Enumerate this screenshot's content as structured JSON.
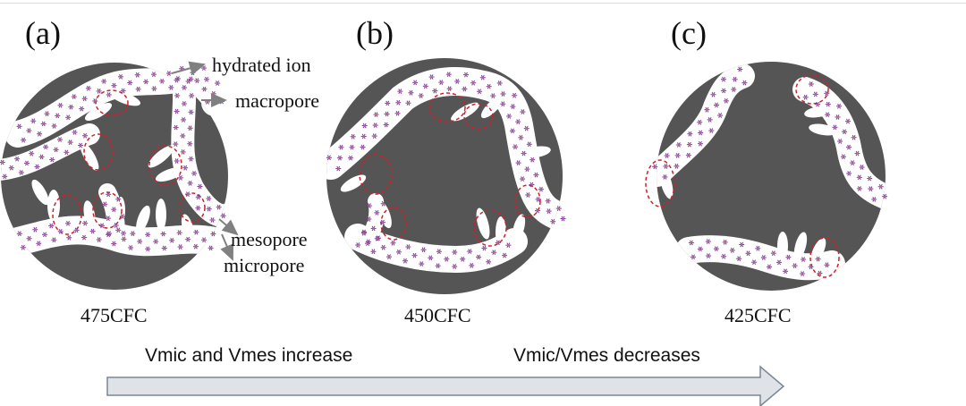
{
  "panels": [
    {
      "letter": "(a)",
      "sample": "475CFC"
    },
    {
      "letter": "(b)",
      "sample": "450CFC"
    },
    {
      "letter": "(c)",
      "sample": "425CFC"
    }
  ],
  "callouts": {
    "hydrated_ion": "hydrated ion",
    "macropore": "macropore",
    "mesopore": "mesopore",
    "micropore": "micropore"
  },
  "trend_arrow": {
    "left_text": "Vmic and Vmes increase",
    "right_text": "Vmic/Vmes decreases"
  },
  "colors": {
    "carbon": "#555555",
    "pore": "#ffffff",
    "ion": "#6a3d8f",
    "ion_core": "#d65a9a",
    "micropore_ring": "#d0202a",
    "arrow_fill": "#dfe3e8",
    "arrow_stroke": "#7a8796",
    "callout_arrow": "#808080"
  }
}
